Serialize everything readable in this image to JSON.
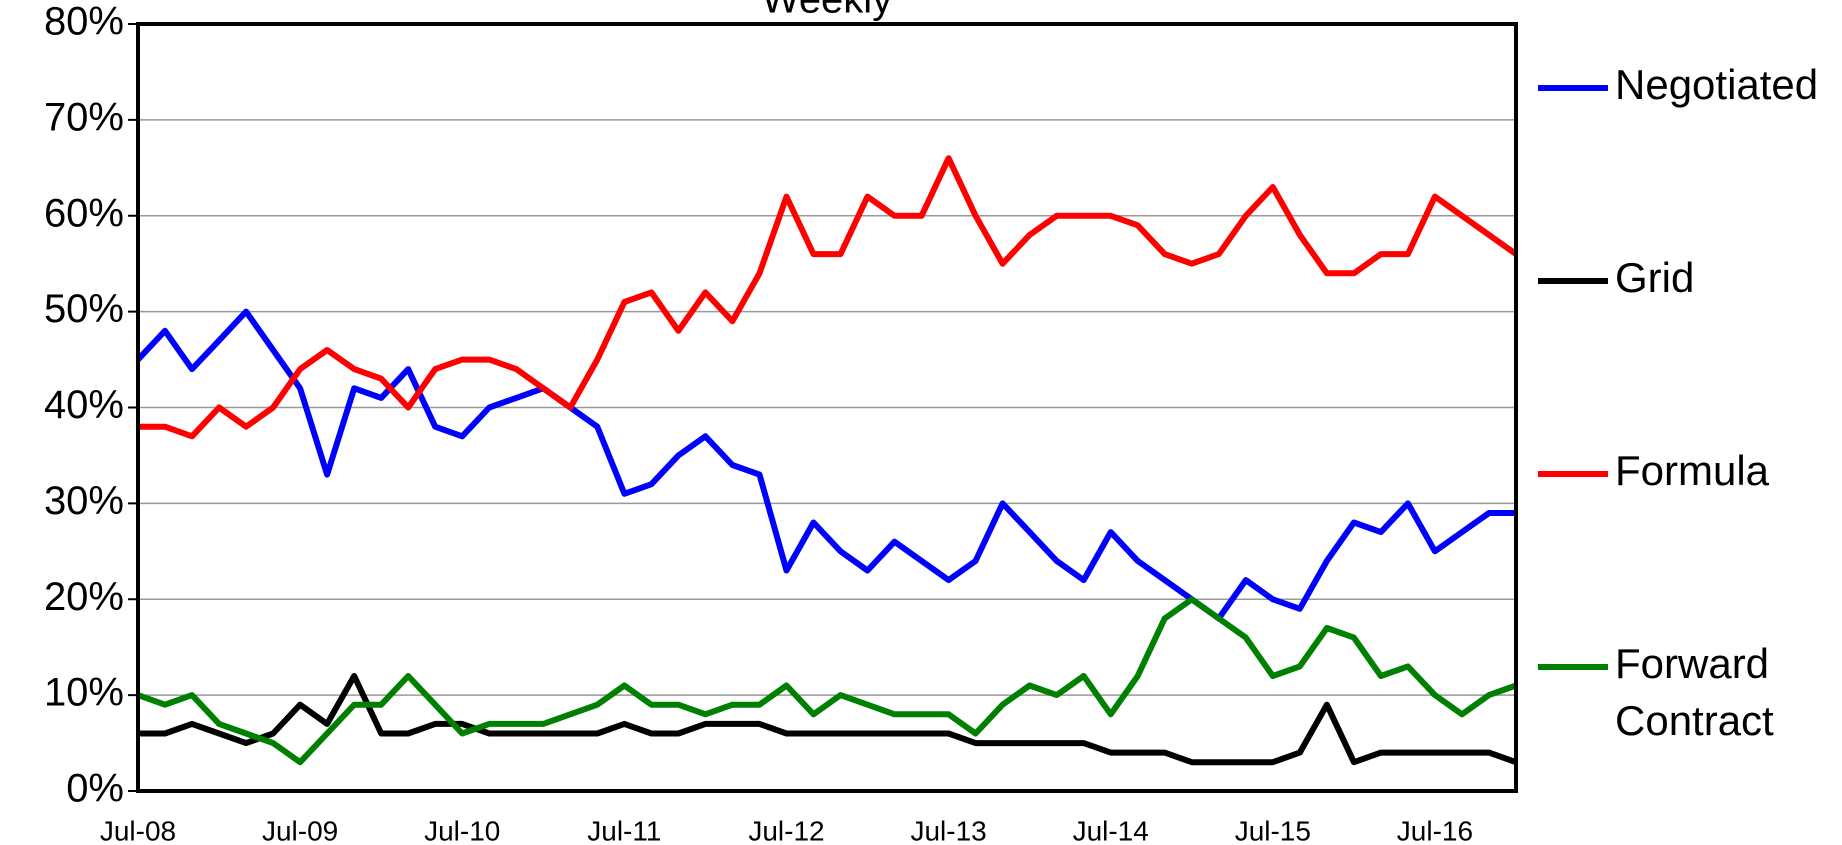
{
  "chart_data": {
    "type": "line",
    "title": "Weekly",
    "categories": [
      "Jul-08",
      null,
      null,
      null,
      null,
      null,
      "Jul-09",
      null,
      null,
      null,
      null,
      null,
      "Jul-10",
      null,
      null,
      null,
      null,
      null,
      "Jul-11",
      null,
      null,
      null,
      null,
      null,
      "Jul-12",
      null,
      null,
      null,
      null,
      null,
      "Jul-13",
      null,
      null,
      null,
      null,
      null,
      "Jul-14",
      null,
      null,
      null,
      null,
      null,
      "Jul-15",
      null,
      null,
      null,
      null,
      null,
      "Jul-16",
      null,
      null,
      null
    ],
    "series": [
      {
        "name": "Negotiated",
        "color": "#0000ff",
        "values": [
          45,
          48,
          44,
          47,
          50,
          46,
          42,
          33,
          42,
          41,
          44,
          38,
          37,
          40,
          41,
          42,
          40,
          38,
          31,
          32,
          35,
          37,
          34,
          33,
          23,
          28,
          25,
          23,
          26,
          24,
          22,
          24,
          30,
          27,
          24,
          22,
          27,
          24,
          22,
          20,
          18,
          22,
          20,
          19,
          24,
          28,
          27,
          30,
          25,
          27,
          29,
          29
        ]
      },
      {
        "name": "Grid",
        "color": "#000000",
        "values": [
          6,
          6,
          7,
          6,
          5,
          6,
          9,
          7,
          12,
          6,
          6,
          7,
          7,
          6,
          6,
          6,
          6,
          6,
          7,
          6,
          6,
          7,
          7,
          7,
          6,
          6,
          6,
          6,
          6,
          6,
          6,
          5,
          5,
          5,
          5,
          5,
          4,
          4,
          4,
          3,
          3,
          3,
          3,
          4,
          9,
          3,
          4,
          4,
          4,
          4,
          4,
          3
        ]
      },
      {
        "name": "Formula",
        "color": "#ff0000",
        "values": [
          38,
          38,
          37,
          40,
          38,
          40,
          44,
          46,
          44,
          43,
          40,
          44,
          45,
          45,
          44,
          42,
          40,
          45,
          51,
          52,
          48,
          52,
          49,
          54,
          62,
          56,
          56,
          62,
          60,
          60,
          66,
          60,
          55,
          58,
          60,
          60,
          60,
          59,
          56,
          55,
          56,
          60,
          63,
          58,
          54,
          54,
          56,
          56,
          62,
          60,
          58,
          56
        ]
      },
      {
        "name": "Forward Contract",
        "color": "#008000",
        "values": [
          10,
          9,
          10,
          7,
          6,
          5,
          3,
          6,
          9,
          9,
          12,
          9,
          6,
          7,
          7,
          7,
          8,
          9,
          11,
          9,
          9,
          8,
          9,
          9,
          11,
          8,
          10,
          9,
          8,
          8,
          8,
          6,
          9,
          11,
          10,
          12,
          8,
          12,
          18,
          20,
          18,
          16,
          12,
          13,
          17,
          16,
          12,
          13,
          10,
          8,
          10,
          11
        ]
      }
    ],
    "ylim": [
      0,
      80
    ],
    "yticks": [
      {
        "value": 0,
        "label": "0%"
      },
      {
        "value": 10,
        "label": "10%"
      },
      {
        "value": 20,
        "label": "20%"
      },
      {
        "value": 30,
        "label": "30%"
      },
      {
        "value": 40,
        "label": "40%"
      },
      {
        "value": 50,
        "label": "50%"
      },
      {
        "value": 60,
        "label": "60%"
      },
      {
        "value": 70,
        "label": "70%"
      },
      {
        "value": 80,
        "label": "80%"
      }
    ],
    "grid": true,
    "legend": "right"
  }
}
